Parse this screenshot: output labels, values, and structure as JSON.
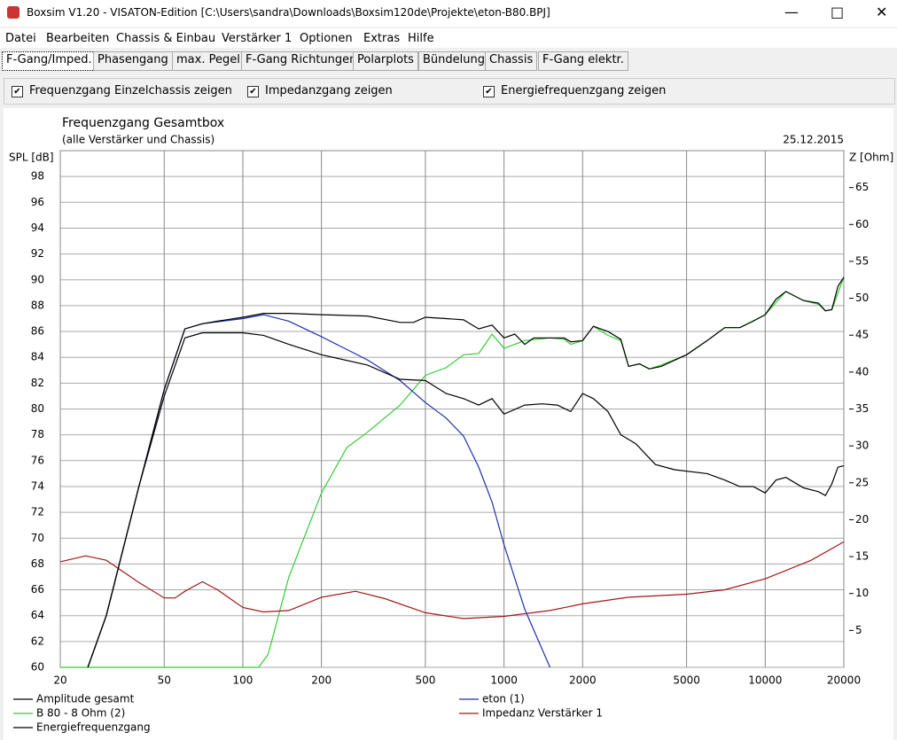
{
  "window": {
    "title": "Boxsim V1.20 - VISATON-Edition [C:\\Users\\sandra\\Downloads\\Boxsim120de\\Projekte\\eton-B80.BPJ]"
  },
  "menu": [
    "Datei",
    "Bearbeiten",
    "Chassis & Einbau",
    "Verstärker 1",
    "Optionen",
    "Extras",
    "Hilfe"
  ],
  "tabs": [
    "F-Gang/Imped.",
    "Phasengang",
    "max. Pegel",
    "F-Gang Richtungen",
    "Polarplots",
    "Bündelung",
    "Chassis",
    "F-Gang elektr."
  ],
  "checkboxes": [
    {
      "label": "Frequenzgang Einzelchassis zeigen",
      "checked": true
    },
    {
      "label": "Impedanzgang zeigen",
      "checked": true
    },
    {
      "label": "Energiefrequenzgang zeigen",
      "checked": true
    }
  ],
  "chart_data": {
    "type": "line",
    "title": "Frequenzgang Gesamtbox",
    "subtitle": "(alle Verstärker und Chassis)",
    "date": "25.12.2015",
    "ylabel": "SPL [dB]",
    "y2label": "Z [Ohm]",
    "xscale": "log",
    "xlim": [
      20,
      20000
    ],
    "xticks": [
      20,
      50,
      100,
      200,
      500,
      1000,
      2000,
      5000,
      10000,
      20000
    ],
    "ylim": [
      60,
      100
    ],
    "yticks": [
      60,
      62,
      64,
      66,
      68,
      70,
      72,
      74,
      76,
      78,
      80,
      82,
      84,
      86,
      88,
      90,
      92,
      94,
      96,
      98
    ],
    "y2lim": [
      0,
      70
    ],
    "y2ticks": [
      5,
      10,
      15,
      20,
      25,
      30,
      35,
      40,
      45,
      50,
      55,
      60,
      65
    ],
    "grid": true,
    "series": [
      {
        "name": "Amplitude gesamt",
        "color": "#000000",
        "x": [
          25.5,
          30,
          40,
          50,
          60,
          70,
          80,
          100,
          120,
          150,
          200,
          300,
          400,
          450,
          500,
          600,
          700,
          800,
          900,
          1000,
          1100,
          1200,
          1300,
          1500,
          1700,
          1800,
          2000,
          2200,
          2500,
          2800,
          3000,
          3300,
          3600,
          4000,
          5000,
          6000,
          7000,
          8000,
          9000,
          10000,
          11000,
          12000,
          14000,
          16000,
          17000,
          18000,
          19000,
          20000
        ],
        "values": [
          60,
          64,
          74,
          81.5,
          86.2,
          86.6,
          86.8,
          87.1,
          87.4,
          87.4,
          87.3,
          87.2,
          86.7,
          86.7,
          87.1,
          87.0,
          86.9,
          86.2,
          86.5,
          85.5,
          85.8,
          85.0,
          85.5,
          85.5,
          85.5,
          85.2,
          85.3,
          86.4,
          86.0,
          85.4,
          83.3,
          83.5,
          83.1,
          83.3,
          84.2,
          85.3,
          86.3,
          86.3,
          86.8,
          87.3,
          88.5,
          89.1,
          88.4,
          88.2,
          87.6,
          87.7,
          89.5,
          90.2
        ]
      },
      {
        "name": "eton (1)",
        "color": "#1f2fa8",
        "x": [
          25.5,
          30,
          40,
          50,
          60,
          70,
          100,
          120,
          150,
          200,
          300,
          400,
          500,
          600,
          700,
          800,
          900,
          1000,
          1200,
          1500
        ],
        "values": [
          60,
          64,
          74,
          81.5,
          86.2,
          86.6,
          87.0,
          87.3,
          86.8,
          85.6,
          83.8,
          82.2,
          80.5,
          79.3,
          77.9,
          75.5,
          72.8,
          69.5,
          64.5,
          60
        ]
      },
      {
        "name": "B 80 - 8 Ohm (2)",
        "color": "#33cc33",
        "x": [
          20,
          115,
          125,
          150,
          200,
          250,
          300,
          400,
          500,
          600,
          700,
          800,
          900,
          1000,
          1200,
          1500,
          1700,
          1800,
          2000,
          2200,
          2500,
          2800,
          3000,
          3300,
          3600,
          4000,
          5000,
          6000,
          7000,
          8000,
          10000,
          12000,
          14000,
          16000,
          17000,
          18000,
          20000
        ],
        "values": [
          60,
          60,
          61,
          67,
          73.5,
          77,
          78.2,
          80.3,
          82.6,
          83.2,
          84.2,
          84.3,
          85.8,
          84.7,
          85.3,
          85.5,
          85.4,
          85.0,
          85.3,
          86.4,
          85.7,
          85.3,
          83.3,
          83.5,
          83.1,
          83.4,
          84.2,
          85.3,
          86.3,
          86.3,
          87.3,
          89.1,
          88.4,
          88.1,
          87.6,
          87.7,
          90.2
        ]
      },
      {
        "name": "Impedanz Verstärker 1",
        "color": "#a01818",
        "axis": "y2",
        "x": [
          20,
          25,
          30,
          40,
          50,
          55,
          60,
          70,
          80,
          100,
          120,
          150,
          200,
          270,
          350,
          500,
          700,
          1000,
          1500,
          2000,
          3000,
          5000,
          7000,
          10000,
          15000,
          20000
        ],
        "values": [
          14.3,
          15.1,
          14.5,
          11.5,
          9.4,
          9.4,
          10.3,
          11.6,
          10.5,
          8.1,
          7.5,
          7.7,
          9.5,
          10.3,
          9.3,
          7.4,
          6.6,
          6.9,
          7.7,
          8.6,
          9.5,
          9.9,
          10.5,
          12.0,
          14.5,
          17.0
        ]
      },
      {
        "name": "Energiefrequenzgang",
        "color": "#000000",
        "x": [
          25.5,
          30,
          40,
          50,
          60,
          70,
          100,
          120,
          150,
          200,
          300,
          400,
          500,
          600,
          700,
          800,
          900,
          1000,
          1200,
          1400,
          1600,
          1800,
          2000,
          2200,
          2500,
          2800,
          3200,
          3800,
          4500,
          6000,
          7000,
          8000,
          9000,
          10000,
          11000,
          12000,
          14000,
          16000,
          17000,
          18000,
          19000,
          20000
        ],
        "values": [
          60,
          64,
          74,
          81,
          85.5,
          85.9,
          85.9,
          85.7,
          85,
          84.2,
          83.4,
          82.3,
          82.2,
          81.2,
          80.8,
          80.3,
          80.8,
          79.6,
          80.3,
          80.4,
          80.3,
          79.8,
          81.2,
          80.8,
          79.8,
          78.0,
          77.3,
          75.7,
          75.3,
          75.0,
          74.5,
          74.0,
          74.0,
          73.5,
          74.5,
          74.7,
          73.9,
          73.6,
          73.3,
          74.2,
          75.5,
          75.6
        ]
      }
    ]
  }
}
